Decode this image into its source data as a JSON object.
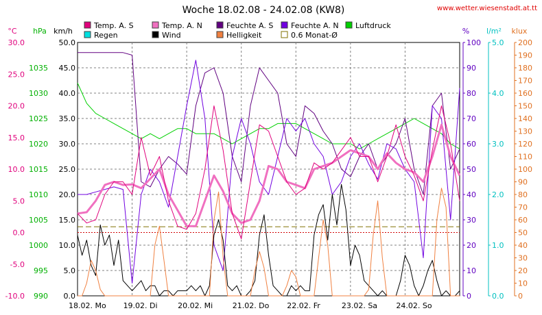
{
  "chart_data": {
    "type": "line",
    "title": "Woche 18.02.08 - 24.02.08 (KW8)",
    "source_url": "www.wetter.wiesenstadt.at.tt",
    "grid": true,
    "legend_position": "top",
    "x_labels": [
      "18.02. Mo",
      "19.02. Di",
      "20.02. Mi",
      "21.02. Do",
      "22.02. Fr",
      "23.02. Sa",
      "24.02. So"
    ],
    "x_range_hours": [
      0,
      168
    ],
    "axes": {
      "temp": {
        "label": "°C",
        "range": [
          -10,
          30
        ],
        "ticks": [
          30.0,
          25.0,
          20.0,
          15.0,
          10.0,
          5.0,
          0.0,
          -5.0,
          -10.0
        ],
        "color": "#e0007c"
      },
      "pressure": {
        "label": "hPa",
        "range": [
          990,
          1040
        ],
        "ticks": [
          1035,
          1030,
          1025,
          1020,
          1015,
          1010,
          1005,
          1000,
          995,
          990
        ],
        "color": "#00b000"
      },
      "wind": {
        "label": "km/h",
        "range": [
          0,
          50
        ],
        "ticks": [
          50.0,
          45.0,
          40.0,
          35.0,
          30.0,
          25.0,
          20.0,
          15.0,
          10.0,
          5.0,
          0.0
        ],
        "color": "#000000"
      },
      "humidity": {
        "label": "%",
        "range": [
          0,
          100
        ],
        "ticks": [
          100,
          90,
          80,
          70,
          60,
          50,
          40,
          30,
          20,
          10,
          0
        ],
        "color": "#6000c0"
      },
      "rain": {
        "label": "l/m²",
        "range": [
          0,
          5
        ],
        "ticks": [
          5.0,
          4.0,
          3.0,
          2.0,
          1.0,
          0.0
        ],
        "color": "#00c0c0"
      },
      "light": {
        "label": "klux",
        "range": [
          0,
          200
        ],
        "ticks": [
          200,
          190,
          180,
          170,
          160,
          150,
          140,
          130,
          120,
          110,
          100,
          90,
          80,
          70,
          60,
          50,
          40,
          30,
          20,
          10,
          0
        ],
        "color": "#e07020"
      }
    },
    "legend": [
      {
        "name": "Temp. A. S",
        "color": "#e0007c",
        "kind": "filled"
      },
      {
        "name": "Temp. A. N",
        "color": "#f070c0",
        "kind": "filled"
      },
      {
        "name": "Feuchte A. S",
        "color": "#600080",
        "kind": "filled"
      },
      {
        "name": "Feuchte A. N",
        "color": "#7000e0",
        "kind": "filled"
      },
      {
        "name": "Luftdruck",
        "color": "#00d000",
        "kind": "filled"
      },
      {
        "name": "Regen",
        "color": "#00e0e0",
        "kind": "filled"
      },
      {
        "name": "Wind",
        "color": "#000000",
        "kind": "filled"
      },
      {
        "name": "Helligkeit",
        "color": "#f08040",
        "kind": "filled"
      },
      {
        "name": "0.6 Monat-Ø",
        "color": "#807000",
        "kind": "hollow"
      }
    ],
    "reference_lines": [
      {
        "name": "0.6 Monat-Ø",
        "axis": "temp",
        "value": 0.9,
        "color": "#807000",
        "dash": "8,4"
      },
      {
        "name": "zero",
        "axis": "temp",
        "value": 0.0,
        "color": "#d00000",
        "dash": "2,2"
      }
    ],
    "series": [
      {
        "name": "Luftdruck",
        "axis": "pressure",
        "color": "#00d000",
        "width": 1,
        "x": [
          0,
          4,
          8,
          12,
          16,
          20,
          24,
          28,
          32,
          36,
          40,
          44,
          48,
          52,
          56,
          60,
          64,
          68,
          72,
          76,
          80,
          84,
          88,
          92,
          96,
          100,
          104,
          108,
          112,
          116,
          120,
          124,
          128,
          132,
          136,
          140,
          144,
          148,
          152,
          156,
          160,
          164,
          168
        ],
        "y": [
          1032,
          1028,
          1026,
          1025,
          1024,
          1023,
          1022,
          1021,
          1022,
          1021,
          1022,
          1023,
          1023,
          1022,
          1022,
          1022,
          1021,
          1020,
          1021,
          1022,
          1023,
          1023,
          1024,
          1024,
          1024,
          1023,
          1022,
          1021,
          1020,
          1020,
          1020,
          1019,
          1020,
          1021,
          1022,
          1023,
          1024,
          1025,
          1024,
          1023,
          1022,
          1020,
          1019
        ]
      },
      {
        "name": "Feuchte A. S",
        "axis": "humidity",
        "color": "#600080",
        "width": 1,
        "x": [
          0,
          4,
          8,
          12,
          16,
          20,
          24,
          28,
          32,
          36,
          40,
          44,
          48,
          52,
          56,
          60,
          64,
          68,
          72,
          76,
          80,
          84,
          88,
          92,
          96,
          100,
          104,
          108,
          112,
          116,
          120,
          124,
          128,
          132,
          136,
          140,
          144,
          148,
          152,
          156,
          160,
          164,
          168
        ],
        "y": [
          96,
          96,
          96,
          96,
          96,
          96,
          95,
          45,
          43,
          50,
          55,
          52,
          48,
          75,
          88,
          90,
          80,
          55,
          45,
          75,
          90,
          85,
          80,
          60,
          55,
          75,
          72,
          65,
          60,
          50,
          47,
          55,
          60,
          50,
          55,
          60,
          70,
          50,
          40,
          75,
          80,
          50,
          58
        ]
      },
      {
        "name": "Feuchte A. N",
        "axis": "humidity",
        "color": "#7000e0",
        "width": 1,
        "x": [
          0,
          4,
          8,
          12,
          16,
          20,
          24,
          28,
          32,
          36,
          40,
          44,
          48,
          52,
          56,
          60,
          64,
          68,
          72,
          76,
          80,
          84,
          88,
          92,
          96,
          100,
          104,
          108,
          112,
          116,
          120,
          124,
          128,
          132,
          136,
          140,
          144,
          148,
          152,
          156,
          160,
          164,
          168
        ],
        "y": [
          40,
          40,
          41,
          42,
          43,
          42,
          5,
          40,
          50,
          45,
          35,
          55,
          75,
          93,
          70,
          20,
          10,
          55,
          70,
          60,
          45,
          40,
          55,
          70,
          65,
          70,
          60,
          55,
          40,
          45,
          55,
          60,
          52,
          46,
          60,
          58,
          50,
          45,
          15,
          75,
          70,
          30,
          82
        ]
      },
      {
        "name": "Temp. A. N",
        "axis": "temp",
        "color": "#f070c0",
        "width": 3,
        "x": [
          0,
          4,
          8,
          12,
          16,
          20,
          24,
          28,
          32,
          36,
          40,
          44,
          48,
          52,
          56,
          60,
          64,
          68,
          72,
          76,
          80,
          84,
          88,
          92,
          96,
          100,
          104,
          108,
          112,
          116,
          120,
          124,
          128,
          132,
          136,
          140,
          144,
          148,
          152,
          156,
          160,
          164,
          168
        ],
        "y": [
          3,
          3.2,
          5,
          7.5,
          8,
          7.5,
          7.6,
          7,
          8.5,
          10,
          6,
          3.5,
          1,
          1,
          5,
          9,
          6.5,
          3,
          1.5,
          2,
          5,
          10.5,
          10,
          8,
          7.5,
          7,
          10,
          10.5,
          11,
          12,
          13,
          12.5,
          12,
          10,
          12.5,
          11,
          10,
          9.5,
          8,
          12,
          17,
          12,
          9
        ]
      },
      {
        "name": "Temp. A. S",
        "axis": "temp",
        "color": "#e0007c",
        "width": 1,
        "x": [
          0,
          4,
          8,
          12,
          16,
          20,
          24,
          28,
          32,
          36,
          40,
          44,
          48,
          52,
          56,
          60,
          64,
          68,
          72,
          76,
          80,
          84,
          88,
          92,
          96,
          100,
          104,
          108,
          112,
          116,
          120,
          124,
          128,
          132,
          136,
          140,
          144,
          148,
          152,
          156,
          160,
          164,
          168
        ],
        "y": [
          3,
          1.5,
          2,
          6,
          8,
          8,
          6,
          15,
          9,
          12,
          5,
          1,
          0.5,
          3,
          10,
          20,
          13,
          3,
          -1,
          8,
          17,
          16,
          12,
          8,
          6,
          7,
          11,
          10,
          11,
          13,
          15,
          12,
          12,
          8,
          12,
          17,
          12,
          9,
          5,
          13,
          20,
          14,
          5
        ]
      },
      {
        "name": "Wind",
        "axis": "wind",
        "color": "#000000",
        "width": 1,
        "x": [
          0,
          2,
          4,
          6,
          8,
          10,
          12,
          14,
          16,
          18,
          20,
          22,
          24,
          26,
          28,
          30,
          32,
          34,
          36,
          38,
          40,
          42,
          44,
          46,
          48,
          50,
          52,
          54,
          56,
          58,
          60,
          62,
          64,
          66,
          68,
          70,
          72,
          74,
          76,
          78,
          80,
          82,
          84,
          86,
          88,
          90,
          92,
          94,
          96,
          98,
          100,
          102,
          104,
          106,
          108,
          110,
          112,
          114,
          116,
          118,
          120,
          122,
          124,
          126,
          128,
          130,
          132,
          134,
          136,
          138,
          140,
          142,
          144,
          146,
          148,
          150,
          152,
          154,
          156,
          158,
          160,
          162,
          164,
          166,
          168
        ],
        "y": [
          12,
          8,
          11,
          6,
          4,
          14,
          10,
          12,
          6,
          11,
          3,
          2,
          1,
          2,
          3,
          1,
          2,
          2,
          0,
          1,
          1,
          0,
          1,
          1,
          1,
          2,
          1,
          2,
          0,
          2,
          12,
          15,
          11,
          2,
          1,
          2,
          0,
          0,
          1,
          3,
          12,
          16,
          8,
          2,
          1,
          0,
          0,
          2,
          1,
          2,
          1,
          1,
          12,
          16,
          18,
          11,
          20,
          14,
          22,
          17,
          6,
          10,
          8,
          3,
          2,
          1,
          0,
          1,
          0,
          0,
          0,
          3,
          8,
          6,
          2,
          0,
          2,
          5,
          7,
          3,
          0,
          1,
          0,
          0,
          1
        ]
      },
      {
        "name": "Helligkeit",
        "axis": "light",
        "color": "#f08040",
        "width": 1,
        "x": [
          0,
          2,
          4,
          6,
          8,
          10,
          12,
          14,
          16,
          18,
          20,
          22,
          24,
          26,
          28,
          30,
          32,
          34,
          36,
          38,
          40,
          42,
          44,
          46,
          48,
          50,
          52,
          54,
          56,
          58,
          60,
          62,
          64,
          66,
          68,
          70,
          72,
          74,
          76,
          78,
          80,
          82,
          84,
          86,
          88,
          90,
          92,
          94,
          96,
          98,
          100,
          102,
          104,
          106,
          108,
          110,
          112,
          114,
          116,
          118,
          120,
          122,
          124,
          126,
          128,
          130,
          132,
          134,
          136,
          138,
          140,
          142,
          144,
          146,
          148,
          150,
          152,
          154,
          156,
          158,
          160,
          162,
          164,
          166,
          168
        ],
        "y": [
          0,
          0,
          10,
          28,
          20,
          5,
          0,
          0,
          0,
          0,
          0,
          0,
          0,
          0,
          0,
          0,
          0,
          40,
          55,
          28,
          0,
          0,
          0,
          0,
          0,
          0,
          0,
          0,
          0,
          0,
          60,
          82,
          30,
          0,
          0,
          0,
          0,
          0,
          0,
          20,
          35,
          22,
          0,
          0,
          0,
          0,
          8,
          20,
          15,
          0,
          0,
          0,
          0,
          30,
          60,
          40,
          0,
          0,
          0,
          0,
          0,
          0,
          0,
          0,
          5,
          48,
          75,
          30,
          0,
          0,
          0,
          0,
          0,
          0,
          0,
          0,
          0,
          0,
          0,
          60,
          85,
          70,
          0,
          0,
          0
        ]
      }
    ]
  }
}
